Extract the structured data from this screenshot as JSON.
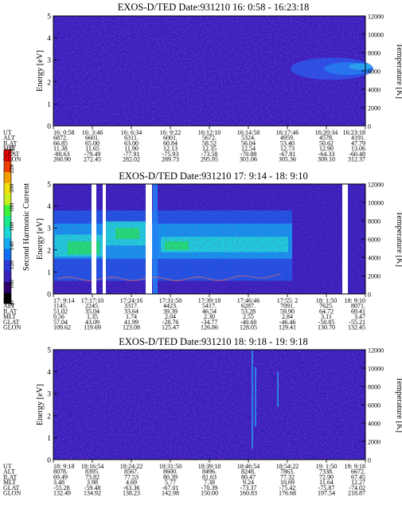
{
  "colorbar": {
    "label": "Second Harmonic Current",
    "ticks": [
      "240",
      "220",
      "200",
      "180",
      "160",
      "140",
      "120",
      "100",
      "80"
    ],
    "colors": [
      "#000000",
      "#2d006e",
      "#3a1fb8",
      "#2a3ad8",
      "#0d6ff0",
      "#16a8f0",
      "#1fd6d6",
      "#18e890",
      "#3cf23c",
      "#c8f020",
      "#f0e010",
      "#f0a000",
      "#f04000",
      "#ff0000"
    ]
  },
  "chart_data": [
    {
      "type": "heatmap",
      "title": "EXOS-D/TED   Date:931210  16: 0:58 - 16:23:18",
      "ylabel": "Energy [eV]",
      "y2label": "Temperature [K]",
      "ylim": [
        0,
        5
      ],
      "y_ticks": [
        "0",
        "1",
        "2",
        "3",
        "4",
        "5"
      ],
      "y2lim": [
        0,
        12000
      ],
      "y2_ticks": [
        "0",
        "2000",
        "4000",
        "6000",
        "8000",
        "10000",
        "12000"
      ],
      "orbit_labels": [
        "UT",
        "ALT",
        "ILAT",
        "MLT",
        "GLAT",
        "GLON"
      ],
      "orbit_columns": [
        [
          "16: 0:58",
          "6872.",
          "66.85",
          "11.38",
          "-80.63",
          "260.90"
        ],
        [
          "16: 3:46",
          "6601.",
          "65.00",
          "11.65",
          "-79.49",
          "272.45"
        ],
        [
          "16: 6:34",
          "6311.",
          "63.00",
          "11.90",
          "-77.91",
          "282.02"
        ],
        [
          "16: 9:22",
          "6001.",
          "60.84",
          "12.13",
          "-75.93",
          "289.73"
        ],
        [
          "16:12:10",
          "5672.",
          "58.52",
          "12.35",
          "-73.58",
          "295.95"
        ],
        [
          "16:14:58",
          "5324.",
          "56.04",
          "12.54",
          "-70.88",
          "301.06"
        ],
        [
          "16:17:46",
          "4959.",
          "53.40",
          "12.73",
          "-67.81",
          "305.36"
        ],
        [
          "16:20:34",
          "4578.",
          "50.62",
          "12.90",
          "-64.33",
          "309.10"
        ],
        [
          "16:23:18",
          "4191.",
          "47.79",
          "13.06",
          "-60.48",
          "312.37"
        ]
      ]
    },
    {
      "type": "heatmap",
      "title": "EXOS-D/TED   Date:931210  17: 9:14 - 18: 9:10",
      "ylabel": "Energy [eV]",
      "y2label": "Temperature [K]",
      "ylim": [
        0,
        5
      ],
      "y_ticks": [
        "0",
        "1",
        "2",
        "3",
        "4",
        "5"
      ],
      "y2lim": [
        0,
        12000
      ],
      "y2_ticks": [
        "0",
        "2000",
        "4000",
        "6000",
        "8000",
        "10000",
        "12000"
      ],
      "orbit_labels": [
        "UT",
        "ALT",
        "ILAT",
        "MLT",
        "GLAT",
        "GLON"
      ],
      "orbit_columns": [
        [
          "17: 9:14",
          "1145.",
          "51.02",
          "0.56",
          "57.04",
          "109.62"
        ],
        [
          "17:17:10",
          "2245.",
          "35.04",
          "1.35",
          "43.09",
          "119.69"
        ],
        [
          "17:24:16",
          "3317.",
          "33.64",
          "1.74",
          "41.99",
          "123.08"
        ],
        [
          "17:31:50",
          "4423.",
          "39.39",
          "2.04",
          "-28.76",
          "125.47"
        ],
        [
          "17:39:18",
          "5417.",
          "46.54",
          "2.30",
          "-34.77",
          "126.86"
        ],
        [
          "17:46:46",
          "6287.",
          "53.28",
          "2.55",
          "-40.60",
          "128.05"
        ],
        [
          "17:55: 2",
          "7091.",
          "59.90",
          "2.84",
          "-46.46",
          "129.41"
        ],
        [
          "18: 1:50",
          "7625.",
          "64.72",
          "3.11",
          "-50.85",
          "130.70"
        ],
        [
          "18: 9:10",
          "8071.",
          "69.41",
          "3.47",
          "-55.21",
          "132.45"
        ]
      ]
    },
    {
      "type": "heatmap",
      "title": "EXOS-D/TED   Date:931210  18: 9:18 - 19: 9:18",
      "ylabel": "Energy [eV]",
      "y2label": "Temperature [K]",
      "ylim": [
        0,
        5
      ],
      "y_ticks": [
        "0",
        "1",
        "2",
        "3",
        "4",
        "5"
      ],
      "y2lim": [
        0,
        12000
      ],
      "y2_ticks": [
        "0",
        "2000",
        "4000",
        "6000",
        "8000",
        "10000",
        "12000"
      ],
      "orbit_labels": [
        "UT",
        "ALT",
        "ILAT",
        "MLT",
        "GLAT",
        "GLON"
      ],
      "orbit_columns": [
        [
          "18: 9:18",
          "8078.",
          "69.49",
          "3.48",
          "-55.28",
          "132.49"
        ],
        [
          "18:16:54",
          "8395.",
          "73.82",
          "3.98",
          "-59.48",
          "134.92"
        ],
        [
          "18:24:22",
          "8567.",
          "77.53",
          "4.69",
          "-63.36",
          "138.23"
        ],
        [
          "18:31:50",
          "8600.",
          "80.39",
          "5.77",
          "-67.01",
          "142.98"
        ],
        [
          "18:39:18",
          "8496.",
          "81.63",
          "7.38",
          "-70.39",
          "150.00"
        ],
        [
          "18:46:54",
          "8248.",
          "80.47",
          "9.24",
          "-73.37",
          "160.83"
        ],
        [
          "18:54:22",
          "7863.",
          "77.32",
          "10.69",
          "-75.42",
          "176.68"
        ],
        [
          "19: 1:50",
          "7338.",
          "72.90",
          "11.64",
          "-75.87",
          "197.54"
        ],
        [
          "19: 9:18",
          "6672.",
          "67.45",
          "12.27",
          "-74.02",
          "218.87"
        ]
      ]
    }
  ]
}
